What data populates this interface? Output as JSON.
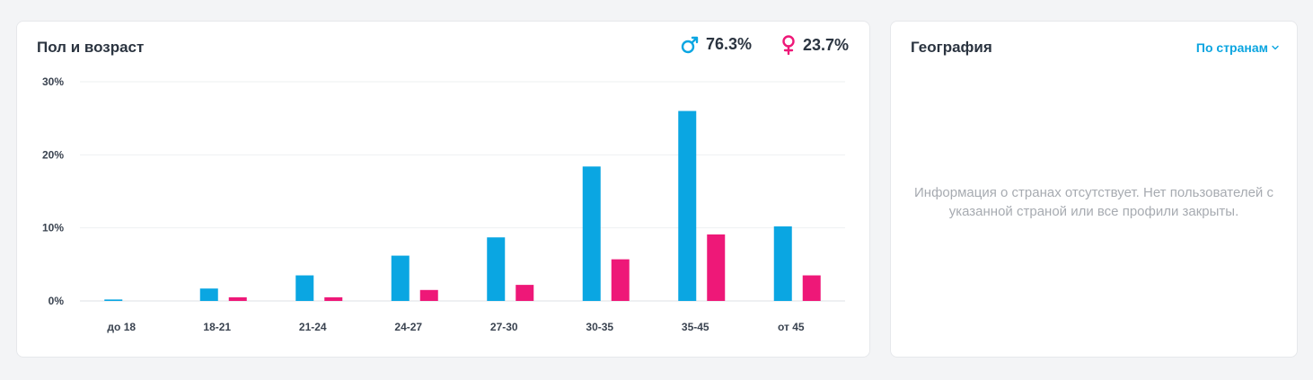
{
  "age_card": {
    "title": "Пол и возраст",
    "male_percent": "76.3%",
    "female_percent": "23.7%",
    "male_icon": "male-symbol-icon",
    "female_icon": "female-symbol-icon"
  },
  "geo_card": {
    "title": "География",
    "dropdown_label": "По странам",
    "dropdown_icon": "chevron-down-icon",
    "empty_message": "Информация о странах отсутствует. Нет пользователей с указанной страной или все профили закрыты."
  },
  "colors": {
    "male": "#0aa6e2",
    "female": "#ee1878",
    "accent": "#0ba5e0"
  },
  "chart_data": {
    "type": "bar",
    "categories": [
      "до 18",
      "18-21",
      "21-24",
      "24-27",
      "27-30",
      "30-35",
      "35-45",
      "от 45"
    ],
    "series": [
      {
        "values": [
          0.2,
          1.7,
          3.5,
          6.2,
          8.7,
          18.4,
          26.0,
          10.2
        ]
      },
      {
        "values": [
          0.0,
          0.5,
          0.5,
          1.5,
          2.2,
          5.7,
          9.1,
          3.5
        ]
      }
    ],
    "ytick_labels": [
      "0%",
      "10%",
      "20%",
      "30%"
    ],
    "yticks": [
      0,
      10,
      20,
      30
    ],
    "ylim": [
      0,
      30
    ],
    "grid": true,
    "xlabel": "",
    "ylabel": ""
  }
}
